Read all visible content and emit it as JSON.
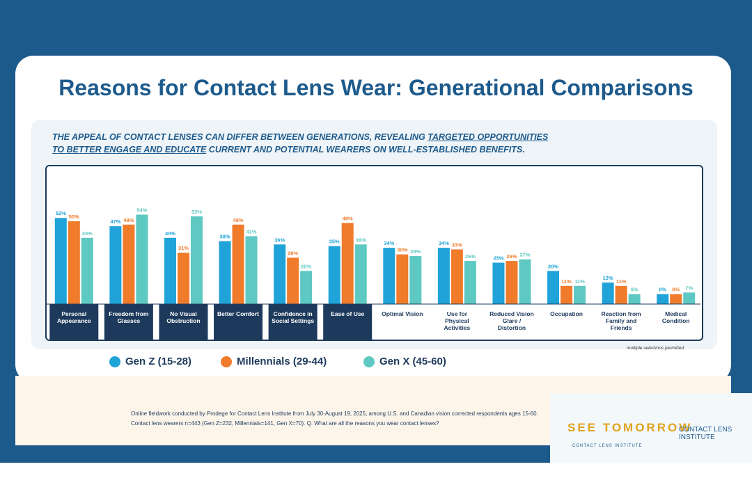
{
  "chart_data": {
    "type": "bar",
    "title": "Reasons for Contact Lens Wear: Generational Comparisons",
    "subtitle": [
      "THE APPEAL OF CONTACT LENSES CAN DIFFER BETWEEN GENERATIONS, REVEALING ",
      "TARGETED OPPORTUNITIES TO BETTER ENGAGE AND EDUCATE",
      " CURRENT AND POTENTIAL WEARERS ON WELL-ESTABLISHED BENEFITS."
    ],
    "categories": [
      "Personal Appearance",
      "Freedom from Glasses",
      "No Visual Obstruction",
      "Better Comfort",
      "Confidence in Social Settings",
      "Ease of Use",
      "Optimal Vision",
      "Use for Physical Activities",
      "Reduced Vision Glare / Distortion",
      "Occupation",
      "Reaction from Family and Friends",
      "Medical Condition"
    ],
    "series": [
      {
        "name": "Gen Z (15-28)",
        "color": "#1fa3d8",
        "values": [
          52,
          47,
          40,
          38,
          36,
          35,
          34,
          34,
          25,
          20,
          13,
          6
        ],
        "value_labels": [
          "52%",
          "47%",
          "40%",
          "38%",
          "36%",
          "35%",
          "34%",
          "34%",
          "25%",
          "20%",
          "13%",
          "6%"
        ]
      },
      {
        "name": "Millennials (29-44)",
        "color": "#ef7b2b",
        "values": [
          50,
          48,
          31,
          48,
          28,
          49,
          30,
          33,
          26,
          11,
          11,
          6
        ],
        "value_labels": [
          "50%",
          "48%",
          "31%",
          "48%",
          "28%",
          "49%",
          "30%",
          "33%",
          "26%",
          "11%",
          "11%",
          "6%"
        ]
      },
      {
        "name": "Gen X (45-60)",
        "color": "#5ec8c2",
        "values": [
          40,
          54,
          53,
          41,
          20,
          36,
          29,
          26,
          27,
          11,
          6,
          7
        ],
        "value_labels": [
          "40%",
          "54%",
          "53%",
          "41%",
          "20%",
          "36%",
          "29%",
          "26%",
          "27%",
          "11%",
          "6%",
          "7%"
        ]
      }
    ],
    "note": "multiple selections permitted",
    "footnote": "Online fieldwork conducted by Prodege for Contact Lens Institute from July 30-August 19, 2025, among U.S. and Canadian vision corrected respondents ages 15-60. Contact lens wearers n=443 (Gen Z=232, Millennials=141, Gen X=70). Q. What are all the reasons you wear contact lenses?",
    "logos": [
      "SEE TOMORROW",
      "CONTACT LENS INSTITUTE",
      "CONTACT LENS INSTITUTE"
    ]
  }
}
